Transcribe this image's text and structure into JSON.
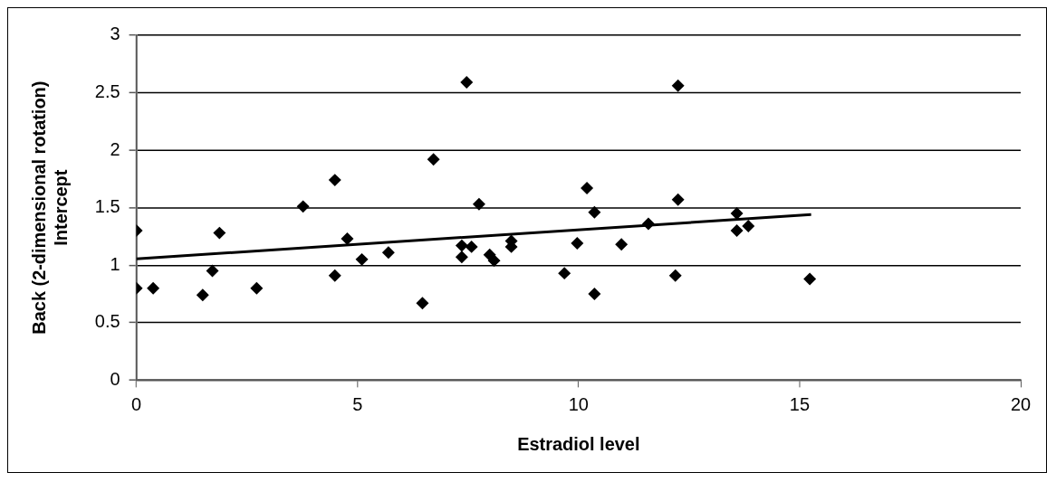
{
  "chart_data": {
    "type": "scatter",
    "xlabel": "Estradiol level",
    "ylabel": "Back (2-dimensional rotation)\nIntercept",
    "xlim": [
      0,
      20
    ],
    "xticks": [
      0,
      5,
      10,
      15,
      20
    ],
    "ylim": [
      0,
      3
    ],
    "yticks": [
      0,
      0.5,
      1,
      1.5,
      2,
      2.5,
      3
    ],
    "grid": "y",
    "legend": false,
    "marker": "diamond",
    "series": [
      {
        "color": "#000000",
        "x": [
          0,
          0,
          0.38,
          1.5,
          1.72,
          1.88,
          2.72,
          3.77,
          4.49,
          4.49,
          4.77,
          5.1,
          5.7,
          6.47,
          6.72,
          7.47,
          7.36,
          7.36,
          7.58,
          7.75,
          7.99,
          8.09,
          8.48,
          8.48,
          9.68,
          9.97,
          10.19,
          10.36,
          10.36,
          10.97,
          11.58,
          12.25,
          12.25,
          12.19,
          13.58,
          13.58,
          13.84,
          15.23
        ],
        "values": [
          1.3,
          0.8,
          0.8,
          0.74,
          0.95,
          1.28,
          0.8,
          1.51,
          1.74,
          0.91,
          1.23,
          1.05,
          1.11,
          0.67,
          1.92,
          2.59,
          1.17,
          1.07,
          1.16,
          1.53,
          1.09,
          1.04,
          1.21,
          1.16,
          0.93,
          1.19,
          1.67,
          1.46,
          0.75,
          1.18,
          1.36,
          2.56,
          1.57,
          0.91,
          1.45,
          1.3,
          1.34,
          0.88
        ]
      },
      {
        "type": "line",
        "color": "#000000",
        "marker": "none",
        "x": [
          0,
          15.26
        ],
        "values": [
          1.055,
          1.44
        ]
      }
    ]
  }
}
